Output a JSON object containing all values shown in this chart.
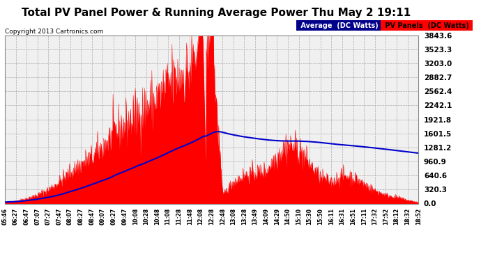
{
  "title": "Total PV Panel Power & Running Average Power Thu May 2 19:11",
  "copyright": "Copyright 2013 Cartronics.com",
  "legend_avg_label": "Average  (DC Watts)",
  "legend_pv_label": "PV Panels  (DC Watts)",
  "y_ticks": [
    0.0,
    320.3,
    640.6,
    960.9,
    1281.2,
    1601.5,
    1921.8,
    2242.1,
    2562.4,
    2882.7,
    3203.0,
    3523.3,
    3843.6
  ],
  "ymax": 3843.6,
  "bg_color": "#ffffff",
  "pv_color": "#ff0000",
  "avg_color": "#0000cc",
  "avg_legend_bg": "#00008b",
  "pv_legend_bg": "#ff0000",
  "title_fontsize": 11,
  "x_labels": [
    "05:46",
    "06:27",
    "06:47",
    "07:07",
    "07:27",
    "07:47",
    "08:07",
    "08:27",
    "08:47",
    "09:07",
    "09:27",
    "09:47",
    "10:08",
    "10:28",
    "10:48",
    "11:08",
    "11:28",
    "11:48",
    "12:08",
    "12:28",
    "12:48",
    "13:08",
    "13:28",
    "13:49",
    "14:09",
    "14:29",
    "14:50",
    "15:10",
    "15:30",
    "15:50",
    "16:11",
    "16:31",
    "16:51",
    "17:11",
    "17:32",
    "17:52",
    "18:12",
    "18:32",
    "18:52"
  ]
}
